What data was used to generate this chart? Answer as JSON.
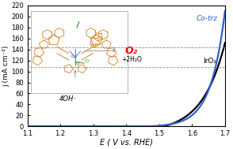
{
  "xlim": [
    1.1,
    1.7
  ],
  "ylim": [
    0,
    220
  ],
  "xticks": [
    1.1,
    1.2,
    1.3,
    1.4,
    1.5,
    1.6,
    1.7
  ],
  "yticks": [
    0,
    20,
    40,
    60,
    80,
    100,
    120,
    140,
    160,
    180,
    200,
    220
  ],
  "xlabel": "E ( V vs. RHE)",
  "ylabel": "j (mA cm⁻²)",
  "cotrz_label": "Co-trz",
  "iro2_label": "IrO₂",
  "cotrz_color": "#3060D0",
  "iro2_color": "#000000",
  "cotrz_onset": 1.46,
  "cotrz_steepness": 23.0,
  "iro2_onset": 1.515,
  "iro2_steepness": 14.5,
  "background_color": "#ffffff",
  "o2_label": "O₂",
  "reaction_label": "+2H₂O",
  "oh_label": "4OH⁻",
  "line_width": 1.6,
  "mol_color_orange": "#D4720A",
  "mol_color_blue": "#4060C0",
  "mol_color_green": "#228B22",
  "mol_color_dark": "#555555"
}
